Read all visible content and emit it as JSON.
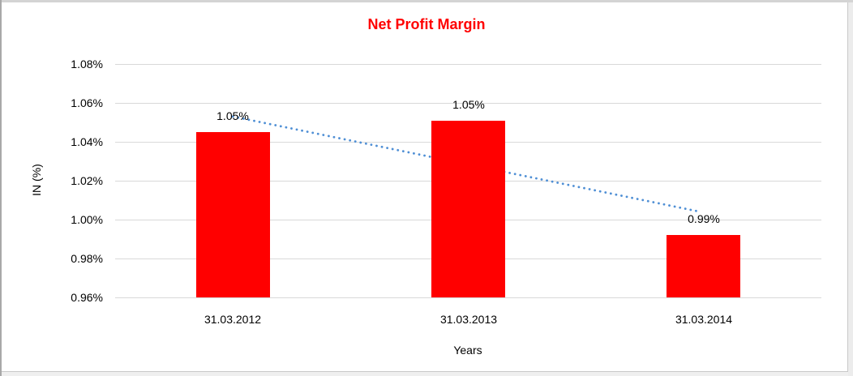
{
  "frame": {
    "background": "#FFFFFF",
    "surround_gray": "#D9D9D9"
  },
  "chart_data": {
    "type": "bar",
    "title": "Net Profit Margin",
    "title_color": "#FF0000",
    "xlabel": "Years",
    "ylabel": "IN (%)",
    "categories": [
      "31.03.2012",
      "31.03.2013",
      "31.03.2014"
    ],
    "series": [
      {
        "name": "Net Profit Margin",
        "color": "#FF0000",
        "values": [
          1.045,
          1.051,
          0.992
        ],
        "data_labels": [
          "1.05%",
          "1.05%",
          "0.99%"
        ]
      }
    ],
    "trendline": {
      "type": "linear",
      "style": "dotted",
      "color": "#4F8FD5",
      "start_value": 1.053,
      "end_value": 1.004
    },
    "y_axis": {
      "min": 0.96,
      "max": 1.08,
      "step": 0.02,
      "tick_labels": [
        "1.08%",
        "1.06%",
        "1.04%",
        "1.02%",
        "1.00%",
        "0.98%",
        "0.96%"
      ],
      "format": "percent"
    },
    "gridlines": {
      "visible": true,
      "color": "#D9D9D9"
    },
    "legend": {
      "visible": false
    },
    "text_color": "#000000"
  }
}
